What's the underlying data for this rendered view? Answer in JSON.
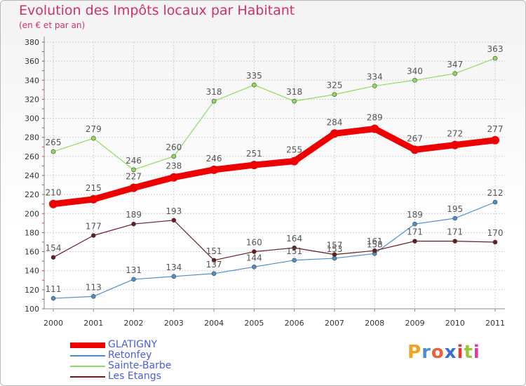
{
  "header": {
    "title": "Evolution des Impôts locaux par Habitant",
    "subtitle": "(en € et par an)"
  },
  "brand": {
    "text": "Proxiti"
  },
  "colors": {
    "title": "#d0306b",
    "grid": "#cfcfcf",
    "legend_text": "#4a5ee0"
  },
  "chart_data": {
    "type": "line",
    "title": "Evolution des Impôts locaux par Habitant",
    "subtitle": "(en € et par an)",
    "xlabel": "",
    "ylabel": "",
    "x": [
      "2000",
      "2001",
      "2002",
      "2003",
      "2004",
      "2005",
      "2006",
      "2007",
      "2008",
      "2009",
      "2010",
      "2011"
    ],
    "ylim": [
      100,
      380
    ],
    "yticks": [
      100,
      120,
      140,
      160,
      180,
      200,
      220,
      240,
      260,
      280,
      300,
      320,
      340,
      360,
      380
    ],
    "grid": true,
    "legend_position": "bottom-left",
    "series": [
      {
        "name": "GLATIGNY",
        "color": "#ee0000",
        "values": [
          210,
          215,
          227,
          238,
          246,
          251,
          255,
          284,
          289,
          267,
          272,
          277
        ]
      },
      {
        "name": "Retonfey",
        "color": "#4e8fcb",
        "values": [
          111,
          113,
          131,
          134,
          137,
          144,
          151,
          153,
          158,
          189,
          195,
          212
        ]
      },
      {
        "name": "Sainte-Barbe",
        "color": "#8fdb5b",
        "values": [
          265,
          279,
          246,
          260,
          318,
          335,
          318,
          325,
          334,
          340,
          347,
          363
        ]
      },
      {
        "name": "Les Etangs",
        "color": "#6b1a20",
        "values": [
          154,
          177,
          189,
          193,
          151,
          160,
          164,
          157,
          161,
          171,
          171,
          170
        ]
      }
    ]
  }
}
